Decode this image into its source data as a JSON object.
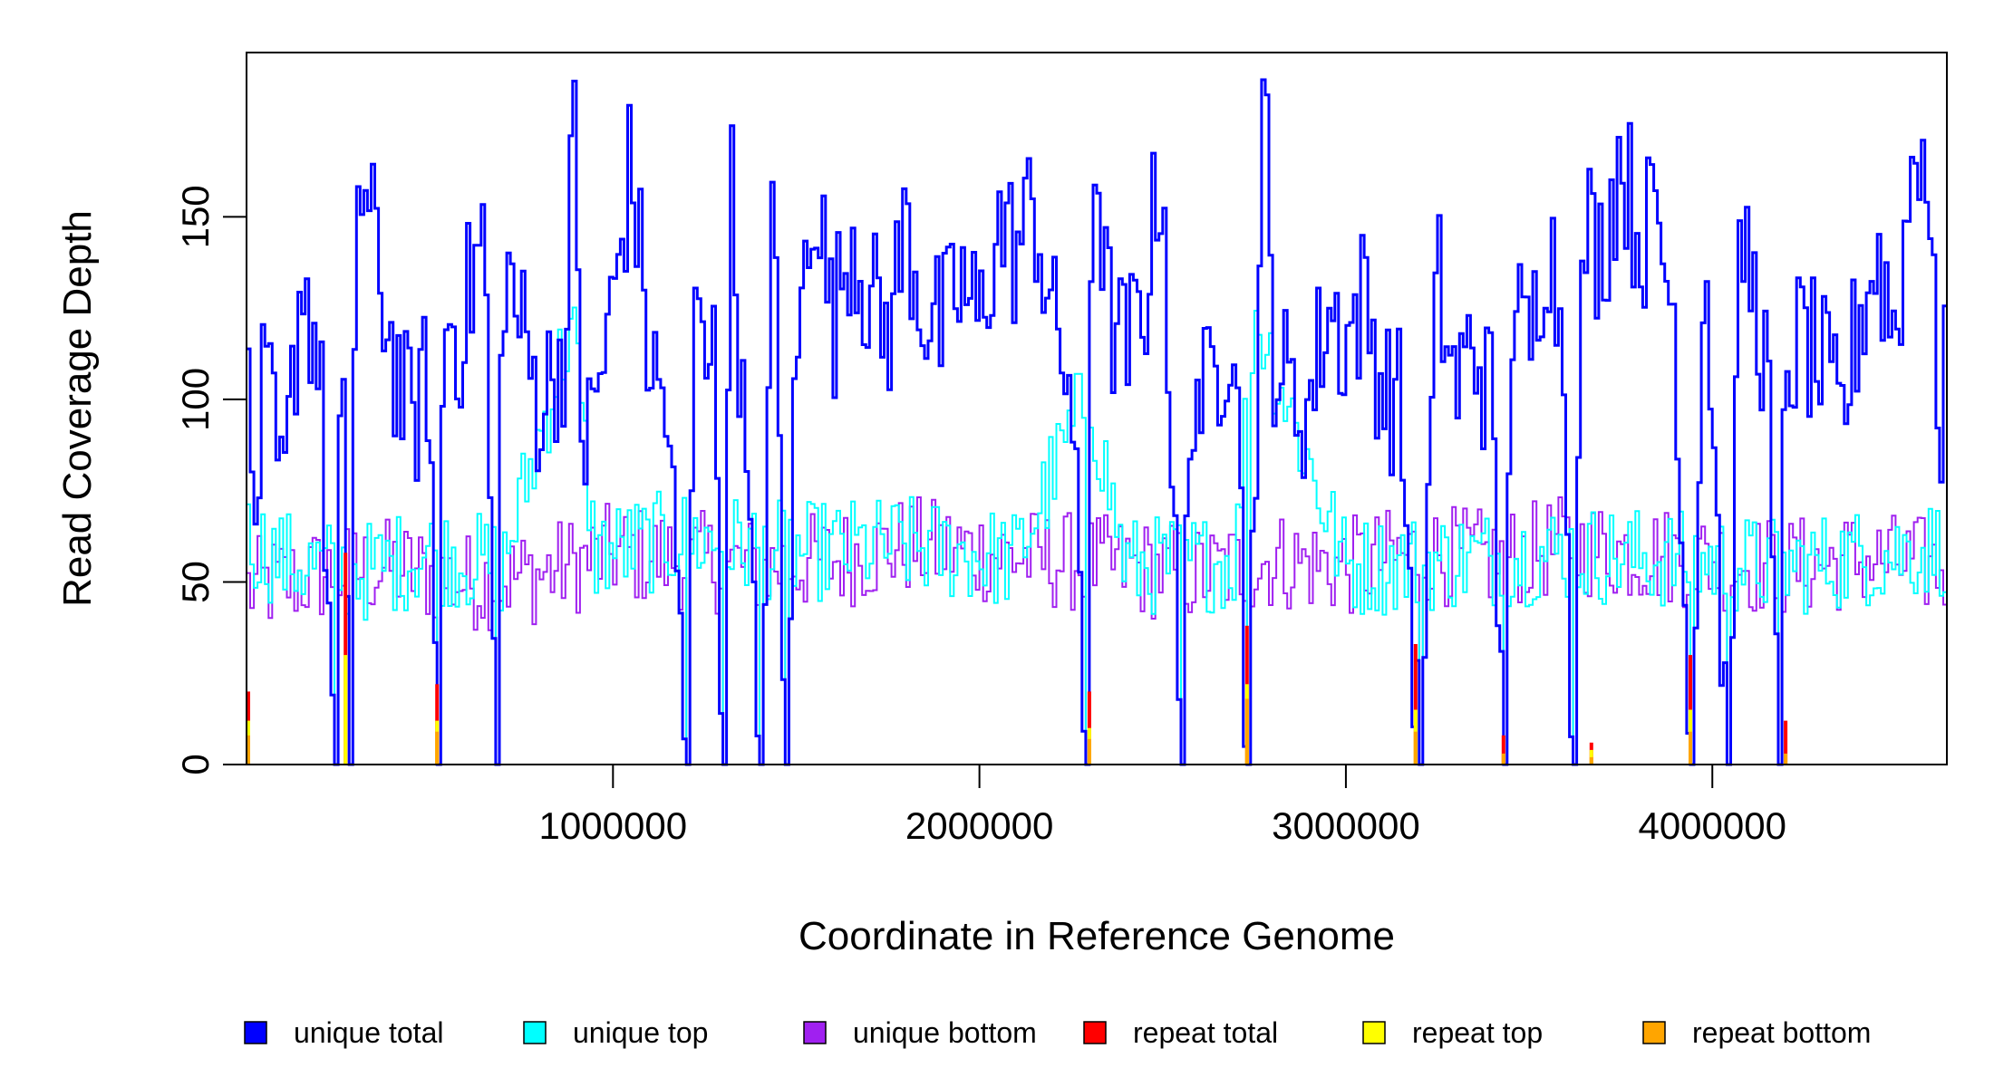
{
  "chart_data": {
    "type": "line",
    "title": "",
    "xlabel": "Coordinate in Reference Genome",
    "ylabel": "Read Coverage Depth",
    "xlim": [
      0,
      4640000
    ],
    "ylim": [
      0,
      195
    ],
    "x_ticks": [
      1000000,
      2000000,
      3000000,
      4000000
    ],
    "x_tick_labels": [
      "1000000",
      "2000000",
      "3000000",
      "4000000"
    ],
    "y_ticks": [
      0,
      50,
      100,
      150
    ],
    "y_tick_labels": [
      "0",
      "50",
      "100",
      "150"
    ],
    "grid": false,
    "legend_position": "bottom",
    "bin_width": 10000,
    "series": [
      {
        "name": "unique total",
        "color": "#0000ff",
        "profile": [
          [
            0,
            108
          ],
          [
            20000,
            62
          ],
          [
            50000,
            106
          ],
          [
            100000,
            68
          ],
          [
            150000,
            136
          ],
          [
            200000,
            110
          ],
          [
            240000,
            0
          ],
          [
            260000,
            115
          ],
          [
            280000,
            0
          ],
          [
            300000,
            162
          ],
          [
            350000,
            142
          ],
          [
            400000,
            112
          ],
          [
            450000,
            92
          ],
          [
            500000,
            108
          ],
          [
            520000,
            0
          ],
          [
            540000,
            126
          ],
          [
            580000,
            116
          ],
          [
            650000,
            148
          ],
          [
            680000,
            0
          ],
          [
            700000,
            140
          ],
          [
            800000,
            98
          ],
          [
            880000,
            118
          ],
          [
            890000,
            190
          ],
          [
            920000,
            82
          ],
          [
            1000000,
            125
          ],
          [
            1050000,
            166
          ],
          [
            1100000,
            110
          ],
          [
            1150000,
            96
          ],
          [
            1200000,
            0
          ],
          [
            1230000,
            142
          ],
          [
            1280000,
            104
          ],
          [
            1300000,
            0
          ],
          [
            1320000,
            166
          ],
          [
            1350000,
            106
          ],
          [
            1400000,
            0
          ],
          [
            1440000,
            162
          ],
          [
            1470000,
            0
          ],
          [
            1500000,
            108
          ],
          [
            1550000,
            164
          ],
          [
            1600000,
            118
          ],
          [
            1650000,
            148
          ],
          [
            1700000,
            128
          ],
          [
            1750000,
            118
          ],
          [
            1800000,
            148
          ],
          [
            1850000,
            124
          ],
          [
            1900000,
            118
          ],
          [
            1950000,
            132
          ],
          [
            2000000,
            120
          ],
          [
            2050000,
            148
          ],
          [
            2100000,
            140
          ],
          [
            2150000,
            154
          ],
          [
            2200000,
            120
          ],
          [
            2250000,
            106
          ],
          [
            2290000,
            0
          ],
          [
            2310000,
            180
          ],
          [
            2350000,
            124
          ],
          [
            2400000,
            112
          ],
          [
            2450000,
            126
          ],
          [
            2500000,
            168
          ],
          [
            2550000,
            0
          ],
          [
            2580000,
            108
          ],
          [
            2620000,
            98
          ],
          [
            2700000,
            128
          ],
          [
            2730000,
            0
          ],
          [
            2780000,
            188
          ],
          [
            2800000,
            116
          ],
          [
            2850000,
            100
          ],
          [
            2900000,
            98
          ],
          [
            2950000,
            126
          ],
          [
            3000000,
            116
          ],
          [
            3050000,
            128
          ],
          [
            3100000,
            104
          ],
          [
            3150000,
            98
          ],
          [
            3200000,
            0
          ],
          [
            3250000,
            134
          ],
          [
            3300000,
            102
          ],
          [
            3350000,
            116
          ],
          [
            3400000,
            98
          ],
          [
            3430000,
            0
          ],
          [
            3450000,
            126
          ],
          [
            3500000,
            112
          ],
          [
            3550000,
            148
          ],
          [
            3600000,
            112
          ],
          [
            3620000,
            0
          ],
          [
            3650000,
            148
          ],
          [
            3700000,
            140
          ],
          [
            3750000,
            168
          ],
          [
            3800000,
            144
          ],
          [
            3850000,
            150
          ],
          [
            3900000,
            120
          ],
          [
            3940000,
            0
          ],
          [
            3980000,
            144
          ],
          [
            4000000,
            100
          ],
          [
            4040000,
            0
          ],
          [
            4080000,
            146
          ],
          [
            4150000,
            110
          ],
          [
            4180000,
            0
          ],
          [
            4200000,
            110
          ],
          [
            4250000,
            116
          ],
          [
            4300000,
            108
          ],
          [
            4350000,
            92
          ],
          [
            4400000,
            122
          ],
          [
            4450000,
            140
          ],
          [
            4500000,
            118
          ],
          [
            4550000,
            168
          ],
          [
            4580000,
            176
          ],
          [
            4600000,
            126
          ],
          [
            4630000,
            86
          ],
          [
            4640000,
            150
          ]
        ],
        "noise": 22
      },
      {
        "name": "unique top",
        "color": "#00ffff",
        "profile": [
          [
            0,
            62
          ],
          [
            100000,
            56
          ],
          [
            300000,
            52
          ],
          [
            500000,
            58
          ],
          [
            700000,
            54
          ],
          [
            890000,
            122
          ],
          [
            950000,
            58
          ],
          [
            1200000,
            62
          ],
          [
            1500000,
            58
          ],
          [
            1800000,
            60
          ],
          [
            2100000,
            56
          ],
          [
            2300000,
            102
          ],
          [
            2400000,
            54
          ],
          [
            2700000,
            56
          ],
          [
            2750000,
            125
          ],
          [
            3000000,
            54
          ],
          [
            3300000,
            56
          ],
          [
            3600000,
            58
          ],
          [
            3900000,
            56
          ],
          [
            4200000,
            54
          ],
          [
            4500000,
            58
          ],
          [
            4640000,
            60
          ]
        ],
        "noise": 14
      },
      {
        "name": "unique bottom",
        "color": "#a020f0",
        "profile": [
          [
            0,
            48
          ],
          [
            200000,
            52
          ],
          [
            400000,
            54
          ],
          [
            600000,
            50
          ],
          [
            800000,
            52
          ],
          [
            1000000,
            58
          ],
          [
            1200000,
            56
          ],
          [
            1400000,
            54
          ],
          [
            1600000,
            56
          ],
          [
            1800000,
            60
          ],
          [
            2000000,
            58
          ],
          [
            2200000,
            56
          ],
          [
            2400000,
            54
          ],
          [
            2600000,
            52
          ],
          [
            2800000,
            56
          ],
          [
            3000000,
            54
          ],
          [
            3200000,
            58
          ],
          [
            3400000,
            56
          ],
          [
            3600000,
            60
          ],
          [
            3800000,
            58
          ],
          [
            4000000,
            56
          ],
          [
            4200000,
            54
          ],
          [
            4400000,
            56
          ],
          [
            4640000,
            54
          ]
        ],
        "noise": 14
      },
      {
        "name": "repeat total",
        "color": "#ff0000",
        "spikes": [
          [
            5000,
            20
          ],
          [
            270000,
            58
          ],
          [
            520000,
            22
          ],
          [
            2300000,
            20
          ],
          [
            2730000,
            38
          ],
          [
            3190000,
            33
          ],
          [
            3430000,
            8
          ],
          [
            3670000,
            6
          ],
          [
            3940000,
            30
          ],
          [
            4200000,
            12
          ]
        ]
      },
      {
        "name": "repeat top",
        "color": "#ffff00",
        "spikes": [
          [
            5000,
            12
          ],
          [
            270000,
            30
          ],
          [
            520000,
            12
          ],
          [
            2300000,
            10
          ],
          [
            2730000,
            22
          ],
          [
            3190000,
            15
          ],
          [
            3670000,
            4
          ],
          [
            3940000,
            15
          ]
        ]
      },
      {
        "name": "repeat bottom",
        "color": "#ffa500",
        "spikes": [
          [
            5000,
            8
          ],
          [
            520000,
            9
          ],
          [
            2300000,
            7
          ],
          [
            2730000,
            18
          ],
          [
            3190000,
            9
          ],
          [
            3430000,
            3
          ],
          [
            3670000,
            2
          ],
          [
            3940000,
            9
          ],
          [
            4200000,
            3
          ]
        ]
      }
    ]
  }
}
